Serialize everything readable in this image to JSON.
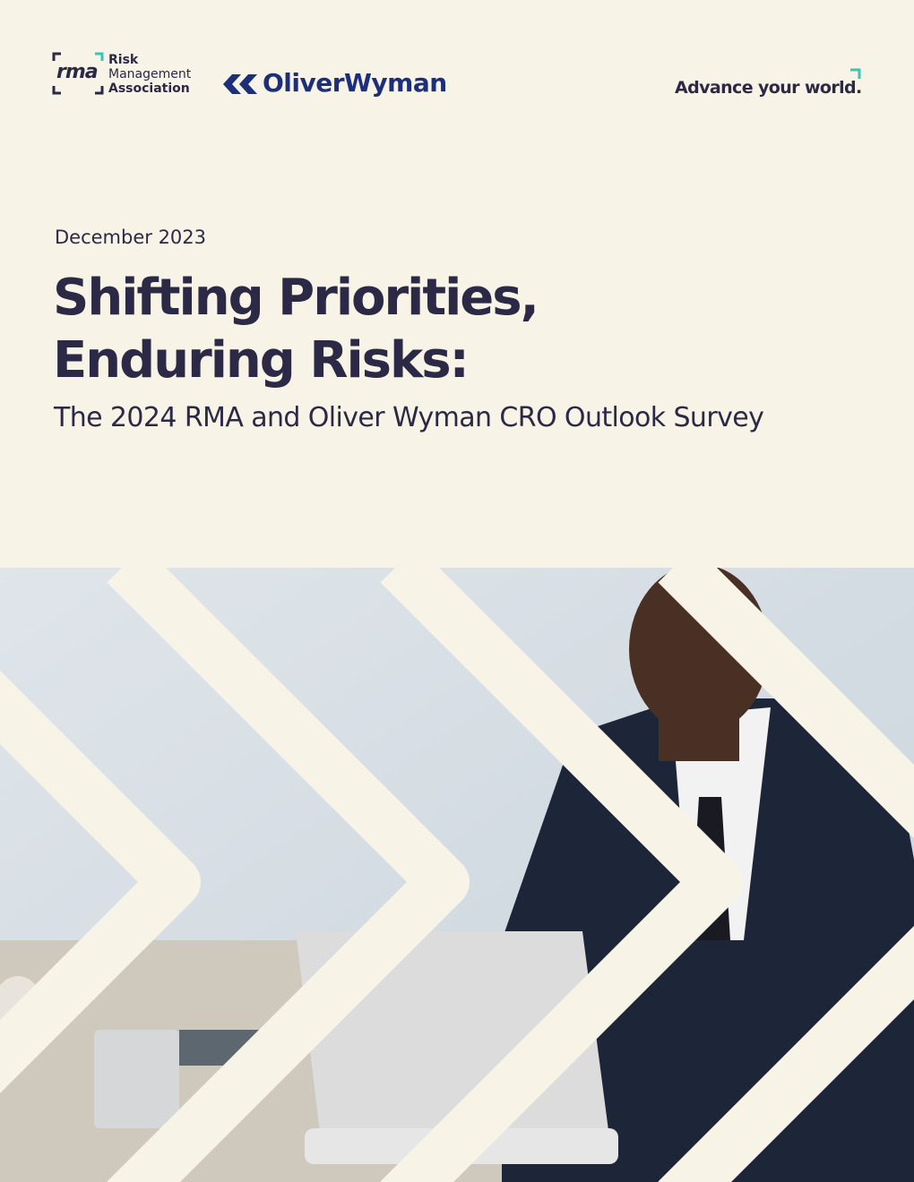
{
  "header": {
    "rma_mark": "rma",
    "rma_name": [
      "Risk",
      "Management",
      "Association"
    ],
    "partner": "OliverWyman",
    "tagline": "Advance your world."
  },
  "date": "December 2023",
  "title": [
    "Shifting Priorities,",
    "Enduring Risks:"
  ],
  "subtitle": "The 2024 RMA and Oliver Wyman CRO Outlook Survey"
}
